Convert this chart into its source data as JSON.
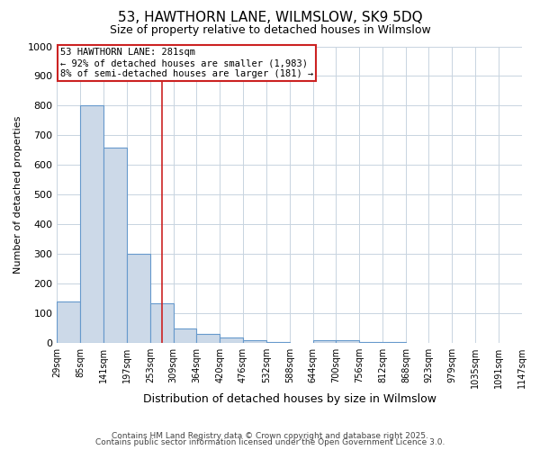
{
  "title": "53, HAWTHORN LANE, WILMSLOW, SK9 5DQ",
  "subtitle": "Size of property relative to detached houses in Wilmslow",
  "xlabel": "Distribution of detached houses by size in Wilmslow",
  "ylabel": "Number of detached properties",
  "bar_color": "#ccd9e8",
  "bar_edge_color": "#6699cc",
  "grid_color": "#c8d4e0",
  "background_color": "#ffffff",
  "property_line_x": 281,
  "property_line_color": "#cc2222",
  "annotation_line1": "53 HAWTHORN LANE: 281sqm",
  "annotation_line2": "← 92% of detached houses are smaller (1,983)",
  "annotation_line3": "8% of semi-detached houses are larger (181) →",
  "annotation_box_color": "#cc2222",
  "footer_text1": "Contains HM Land Registry data © Crown copyright and database right 2025.",
  "footer_text2": "Contains public sector information licensed under the Open Government Licence 3.0.",
  "bin_edges": [
    29,
    85,
    141,
    197,
    253,
    309,
    364,
    420,
    476,
    532,
    588,
    644,
    700,
    756,
    812,
    868,
    923,
    979,
    1035,
    1091,
    1147
  ],
  "bar_heights": [
    140,
    800,
    660,
    300,
    135,
    50,
    30,
    20,
    10,
    5,
    0,
    10,
    10,
    5,
    5,
    0,
    0,
    0,
    0,
    0
  ],
  "ylim": [
    0,
    1000
  ],
  "xlim": [
    29,
    1147
  ]
}
